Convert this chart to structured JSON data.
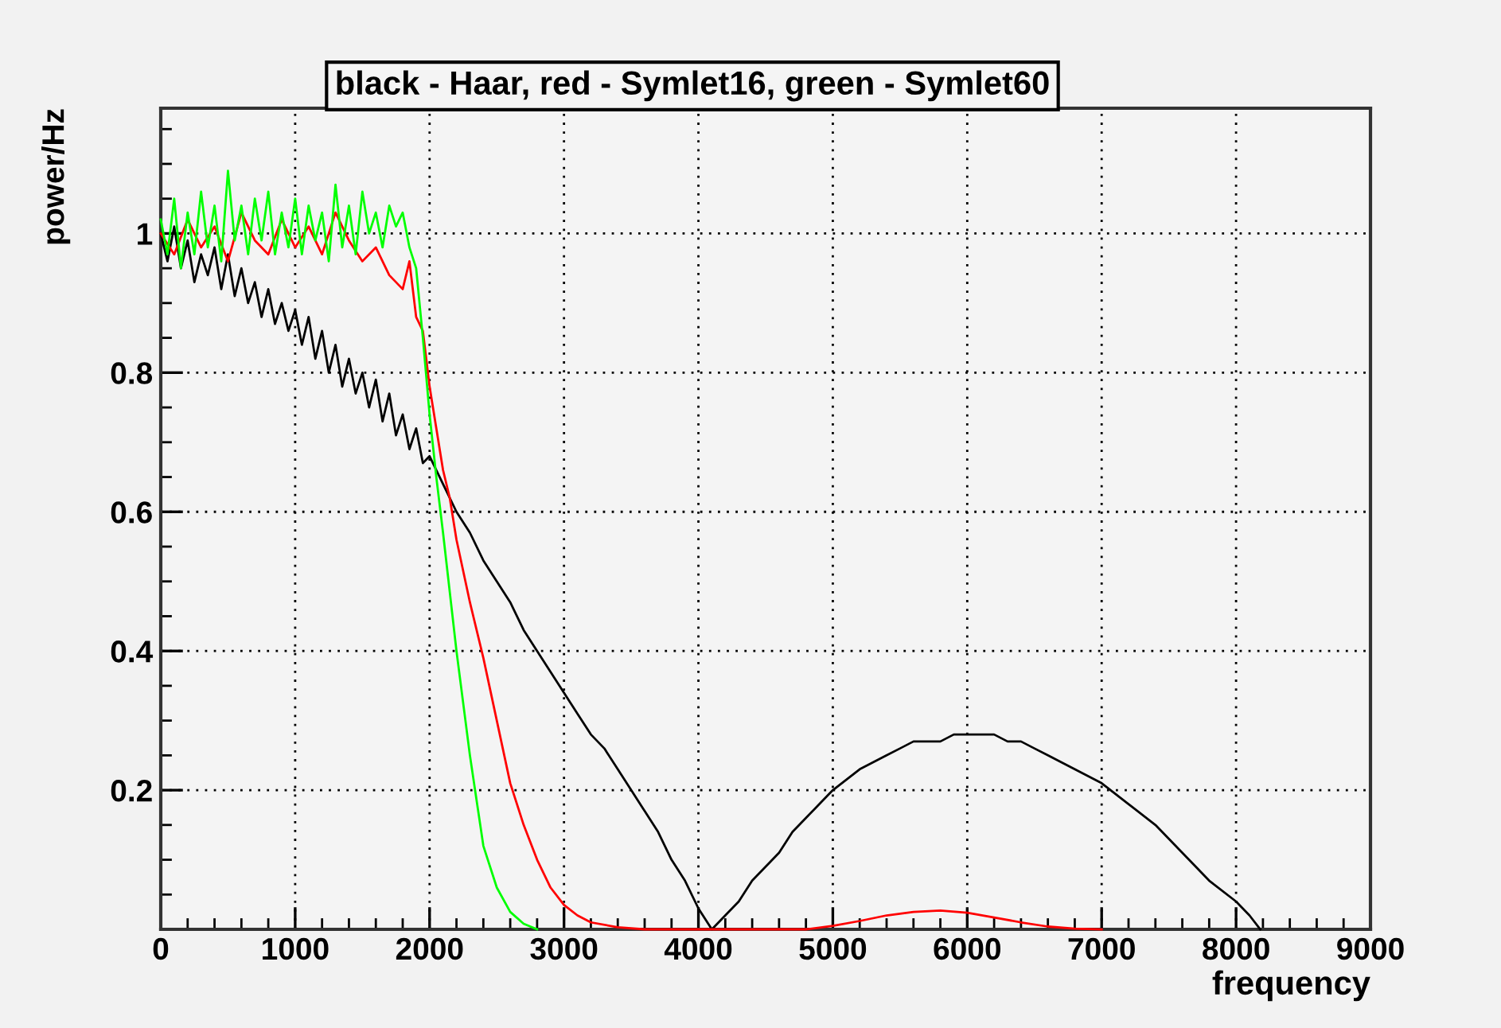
{
  "chart_data": {
    "type": "line",
    "title": "black - Haar, red - Symlet16, green - Symlet60",
    "xlabel": "frequency",
    "ylabel": "power/Hz",
    "xlim": [
      0,
      9000
    ],
    "ylim": [
      0,
      1.18
    ],
    "grid": true,
    "line_style": "solid",
    "marker": "none",
    "legend": false,
    "xticks": [
      0,
      {
        "value": 200,
        "label": null
      },
      {
        "value": 400,
        "label": null
      },
      {
        "value": 600,
        "label": null
      },
      {
        "value": 800,
        "label": null
      },
      1000,
      {
        "value": 1200,
        "label": null
      },
      {
        "value": 1400,
        "label": null
      },
      {
        "value": 1600,
        "label": null
      },
      {
        "value": 1800,
        "label": null
      },
      2000,
      {
        "value": 2200,
        "label": null
      },
      {
        "value": 2400,
        "label": null
      },
      {
        "value": 2600,
        "label": null
      },
      {
        "value": 2800,
        "label": null
      },
      3000,
      {
        "value": 3200,
        "label": null
      },
      {
        "value": 3400,
        "label": null
      },
      {
        "value": 3600,
        "label": null
      },
      {
        "value": 3800,
        "label": null
      },
      4000,
      {
        "value": 4200,
        "label": null
      },
      {
        "value": 4400,
        "label": null
      },
      {
        "value": 4600,
        "label": null
      },
      {
        "value": 4800,
        "label": null
      },
      5000,
      {
        "value": 5200,
        "label": null
      },
      {
        "value": 5400,
        "label": null
      },
      {
        "value": 5600,
        "label": null
      },
      {
        "value": 5800,
        "label": null
      },
      6000,
      {
        "value": 6200,
        "label": null
      },
      {
        "value": 6400,
        "label": null
      },
      {
        "value": 6600,
        "label": null
      },
      {
        "value": 6800,
        "label": null
      },
      7000,
      {
        "value": 7200,
        "label": null
      },
      {
        "value": 7400,
        "label": null
      },
      {
        "value": 7600,
        "label": null
      },
      {
        "value": 7800,
        "label": null
      },
      8000,
      {
        "value": 8200,
        "label": null
      },
      {
        "value": 8400,
        "label": null
      },
      {
        "value": 8600,
        "label": null
      },
      {
        "value": 8800,
        "label": null
      },
      9000
    ],
    "yticks": [
      {
        "value": 0.05,
        "label": null
      },
      {
        "value": 0.1,
        "label": null
      },
      {
        "value": 0.15,
        "label": null
      },
      0.2,
      {
        "value": 0.25,
        "label": null
      },
      {
        "value": 0.3,
        "label": null
      },
      {
        "value": 0.35,
        "label": null
      },
      0.4,
      {
        "value": 0.45,
        "label": null
      },
      {
        "value": 0.5,
        "label": null
      },
      {
        "value": 0.55,
        "label": null
      },
      0.6,
      {
        "value": 0.65,
        "label": null
      },
      {
        "value": 0.7,
        "label": null
      },
      {
        "value": 0.75,
        "label": null
      },
      0.8,
      {
        "value": 0.85,
        "label": null
      },
      {
        "value": 0.9,
        "label": null
      },
      {
        "value": 0.95,
        "label": null
      },
      1,
      {
        "value": 1.05,
        "label": null
      },
      {
        "value": 1.1,
        "label": null
      },
      {
        "value": 1.15,
        "label": null
      }
    ],
    "series": [
      {
        "color": "#000000",
        "x": [
          0,
          50,
          100,
          150,
          200,
          250,
          300,
          350,
          400,
          450,
          500,
          550,
          600,
          650,
          700,
          750,
          800,
          850,
          900,
          950,
          1000,
          1050,
          1100,
          1150,
          1200,
          1250,
          1300,
          1350,
          1400,
          1450,
          1500,
          1550,
          1600,
          1650,
          1700,
          1750,
          1800,
          1850,
          1900,
          1950,
          2000,
          2100,
          2200,
          2300,
          2400,
          2500,
          2600,
          2700,
          2800,
          2900,
          3000,
          3100,
          3200,
          3300,
          3400,
          3500,
          3600,
          3700,
          3800,
          3900,
          4000,
          4100,
          4200,
          4300,
          4400,
          4500,
          4600,
          4700,
          4800,
          4900,
          5000,
          5200,
          5400,
          5500,
          5600,
          5700,
          5800,
          5900,
          6000,
          6100,
          6200,
          6300,
          6400,
          6500,
          6600,
          6800,
          7000,
          7200,
          7400,
          7600,
          7800,
          8000,
          8100,
          8180
        ],
        "values": [
          1.0,
          0.96,
          1.01,
          0.95,
          0.99,
          0.93,
          0.97,
          0.94,
          0.98,
          0.92,
          0.97,
          0.91,
          0.95,
          0.9,
          0.93,
          0.88,
          0.92,
          0.87,
          0.9,
          0.86,
          0.89,
          0.84,
          0.88,
          0.82,
          0.86,
          0.8,
          0.84,
          0.78,
          0.82,
          0.77,
          0.8,
          0.75,
          0.79,
          0.73,
          0.77,
          0.71,
          0.74,
          0.69,
          0.72,
          0.67,
          0.68,
          0.64,
          0.6,
          0.57,
          0.53,
          0.5,
          0.47,
          0.43,
          0.4,
          0.37,
          0.34,
          0.31,
          0.28,
          0.26,
          0.23,
          0.2,
          0.17,
          0.14,
          0.1,
          0.07,
          0.03,
          0.0,
          0.02,
          0.04,
          0.07,
          0.09,
          0.11,
          0.14,
          0.16,
          0.18,
          0.2,
          0.23,
          0.25,
          0.26,
          0.27,
          0.27,
          0.27,
          0.28,
          0.28,
          0.28,
          0.28,
          0.27,
          0.27,
          0.26,
          0.25,
          0.23,
          0.21,
          0.18,
          0.15,
          0.11,
          0.07,
          0.04,
          0.02,
          0.0
        ]
      },
      {
        "color": "#ff0000",
        "x": [
          0,
          100,
          200,
          300,
          400,
          500,
          600,
          700,
          800,
          900,
          1000,
          1100,
          1200,
          1300,
          1400,
          1500,
          1600,
          1700,
          1800,
          1850,
          1900,
          1950,
          2000,
          2050,
          2100,
          2150,
          2200,
          2300,
          2400,
          2500,
          2600,
          2700,
          2800,
          2900,
          3000,
          3100,
          3200,
          3400,
          3600,
          4800,
          5000,
          5200,
          5400,
          5600,
          5800,
          6000,
          6200,
          6400,
          6600,
          6800,
          7000
        ],
        "values": [
          1.0,
          0.97,
          1.02,
          0.98,
          1.01,
          0.96,
          1.03,
          0.99,
          0.97,
          1.02,
          0.98,
          1.01,
          0.97,
          1.03,
          0.99,
          0.96,
          0.98,
          0.94,
          0.92,
          0.96,
          0.88,
          0.86,
          0.78,
          0.72,
          0.66,
          0.62,
          0.56,
          0.47,
          0.39,
          0.3,
          0.21,
          0.15,
          0.1,
          0.06,
          0.035,
          0.02,
          0.01,
          0.003,
          0.0,
          0.0,
          0.005,
          0.012,
          0.02,
          0.025,
          0.027,
          0.024,
          0.017,
          0.01,
          0.004,
          0.001,
          0.0
        ]
      },
      {
        "color": "#00ff00",
        "x": [
          0,
          50,
          100,
          150,
          200,
          250,
          300,
          350,
          400,
          450,
          500,
          550,
          600,
          650,
          700,
          750,
          800,
          850,
          900,
          950,
          1000,
          1050,
          1100,
          1150,
          1200,
          1250,
          1300,
          1350,
          1400,
          1450,
          1500,
          1550,
          1600,
          1650,
          1700,
          1750,
          1800,
          1850,
          1900,
          1950,
          2000,
          2050,
          2100,
          2200,
          2300,
          2400,
          2500,
          2600,
          2700,
          2800
        ],
        "values": [
          1.02,
          0.97,
          1.05,
          0.95,
          1.03,
          0.97,
          1.06,
          0.98,
          1.04,
          0.96,
          1.09,
          0.99,
          1.04,
          0.97,
          1.05,
          0.99,
          1.06,
          0.97,
          1.03,
          0.98,
          1.05,
          0.97,
          1.04,
          0.99,
          1.03,
          0.96,
          1.07,
          0.98,
          1.04,
          0.97,
          1.06,
          1.0,
          1.03,
          0.98,
          1.04,
          1.01,
          1.03,
          0.98,
          0.95,
          0.85,
          0.74,
          0.65,
          0.57,
          0.4,
          0.25,
          0.12,
          0.06,
          0.025,
          0.008,
          0.0
        ]
      }
    ]
  }
}
